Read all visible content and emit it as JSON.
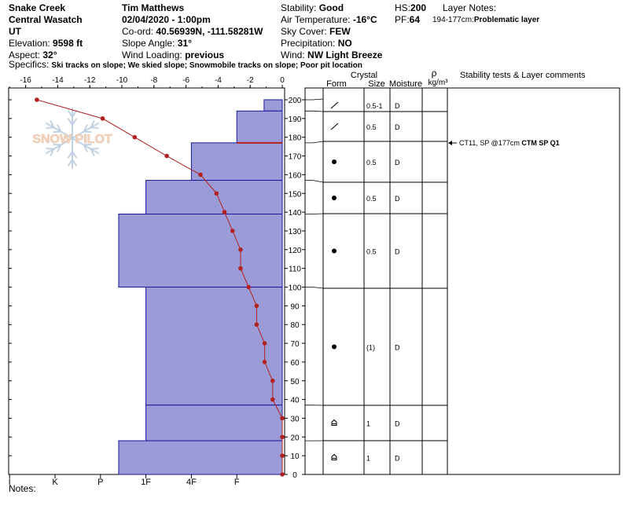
{
  "header": {
    "location": "Snake Creek",
    "region": "Central Wasatch",
    "state": "UT",
    "elevation_label": "Elevation:",
    "elevation_value": "9598 ft",
    "aspect_label": "Aspect:",
    "aspect_value": "32°",
    "observer": "Tim Matthews",
    "datetime": "02/04/2020 - 1:00pm",
    "coord_label": "Co-ord:",
    "coord_value": "40.56939N, -111.58281W",
    "slope_label": "Slope Angle:",
    "slope_value": "31°",
    "wind_loading_label": "Wind Loading:",
    "wind_loading_value": "previous",
    "stability_label": "Stability:",
    "stability_value": "Good",
    "air_temp_label": "Air Temperature:",
    "air_temp_value": "-16°C",
    "sky_label": "Sky Cover:",
    "sky_value": "FEW",
    "precip_label": "Precipitation:",
    "precip_value": "NO",
    "wind_label": "Wind:",
    "wind_value": "NW Light Breeze",
    "hs_label": "HS:",
    "hs_value": "200",
    "pf_label": "PF:",
    "pf_value": "64",
    "layer_notes_label": "Layer Notes:",
    "layer_notes_range": "194-177cm:",
    "layer_notes_text": "Problematic layer",
    "specifics_label": "Specifics:",
    "specifics_text": "Ski tracks on slope; We skied slope; Snowmobile tracks on slope; Poor pit location"
  },
  "watermark": {
    "text": "SNOW PILOT"
  },
  "colors": {
    "hardness_fill": "#9b9bd8",
    "hardness_edge": "#1a1a99",
    "temp_line": "#b22222",
    "problem_line": "#b22222"
  },
  "table_headers": {
    "form": "Form",
    "crystal": "Crystal",
    "size": "Size",
    "moisture": "Moisture",
    "rho": "ρ",
    "density_unit": "kg/m³",
    "stability": "Stability tests & Layer comments"
  },
  "chart_data": {
    "type": "snow-profile",
    "temperature_axis": {
      "range": [
        -17,
        0
      ],
      "ticks": [
        -16,
        -14,
        -12,
        -10,
        -8,
        -6,
        -4,
        -2,
        0
      ]
    },
    "height_axis": {
      "range": [
        0,
        200
      ],
      "ticks": [
        0,
        10,
        20,
        30,
        40,
        50,
        60,
        70,
        80,
        90,
        100,
        110,
        120,
        130,
        140,
        150,
        160,
        170,
        180,
        190,
        200
      ]
    },
    "hardness_axis": {
      "labels": [
        "I",
        "K",
        "P",
        "1F",
        "4F",
        "F"
      ]
    },
    "hardness_scale": {
      "F": 1,
      "4F": 2,
      "1F": 3,
      "P": 4,
      "K": 5,
      "I": 6
    },
    "hardness_layers": [
      {
        "top": 200,
        "bottom": 194,
        "level": 0.4
      },
      {
        "top": 194,
        "bottom": 177,
        "level": 1.0
      },
      {
        "top": 177,
        "bottom": 157,
        "level": 2.0
      },
      {
        "top": 157,
        "bottom": 139,
        "level": 3.0
      },
      {
        "top": 139,
        "bottom": 100,
        "level": 3.6
      },
      {
        "top": 100,
        "bottom": 37,
        "level": 3.0
      },
      {
        "top": 37,
        "bottom": 18,
        "level": 3.0
      },
      {
        "top": 18,
        "bottom": 0,
        "level": 3.6
      }
    ],
    "temperature_profile": [
      {
        "h": 200,
        "t": -15.3
      },
      {
        "h": 190,
        "t": -11.2
      },
      {
        "h": 180,
        "t": -9.2
      },
      {
        "h": 170,
        "t": -7.2
      },
      {
        "h": 160,
        "t": -5.1
      },
      {
        "h": 150,
        "t": -4.1
      },
      {
        "h": 140,
        "t": -3.6
      },
      {
        "h": 130,
        "t": -3.1
      },
      {
        "h": 120,
        "t": -2.6
      },
      {
        "h": 110,
        "t": -2.6
      },
      {
        "h": 100,
        "t": -2.1
      },
      {
        "h": 90,
        "t": -1.6
      },
      {
        "h": 80,
        "t": -1.6
      },
      {
        "h": 70,
        "t": -1.1
      },
      {
        "h": 60,
        "t": -1.1
      },
      {
        "h": 50,
        "t": -0.6
      },
      {
        "h": 40,
        "t": -0.6
      },
      {
        "h": 30,
        "t": 0
      },
      {
        "h": 20,
        "t": 0
      },
      {
        "h": 10,
        "t": 0
      },
      {
        "h": 0,
        "t": 0
      }
    ],
    "problem_layer": {
      "h": 177
    },
    "layers": [
      {
        "top": 200,
        "bottom": 194,
        "form": "decomposing",
        "size": "0.5-1",
        "moisture": "D"
      },
      {
        "top": 194,
        "bottom": 177,
        "form": "decomposing",
        "size": "0.5",
        "moisture": "D"
      },
      {
        "top": 177,
        "bottom": 157,
        "form": "rounded",
        "size": "0.5",
        "moisture": "D"
      },
      {
        "top": 157,
        "bottom": 139,
        "form": "rounded",
        "size": "0.5",
        "moisture": "D"
      },
      {
        "top": 139,
        "bottom": 100,
        "form": "rounded",
        "size": "0.5",
        "moisture": "D"
      },
      {
        "top": 100,
        "bottom": 37,
        "form": "rounded",
        "size": "(1)",
        "moisture": "D"
      },
      {
        "top": 37,
        "bottom": 18,
        "form": "depth-hoar",
        "size": "1",
        "moisture": "D"
      },
      {
        "top": 18,
        "bottom": 0,
        "form": "depth-hoar",
        "size": "1",
        "moisture": "D"
      }
    ],
    "stability_tests": [
      {
        "h": 177,
        "text": "CT11, SP @177cm",
        "bold": "CTM SP Q1"
      }
    ]
  },
  "notes_label": "Notes:"
}
